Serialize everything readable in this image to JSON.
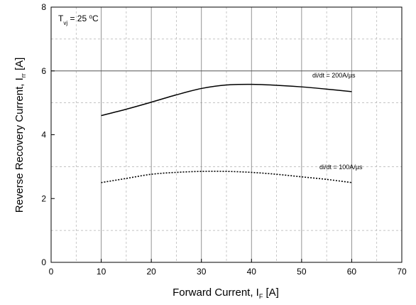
{
  "chart_data": {
    "type": "line",
    "xlabel": {
      "main": "Forward Current, I",
      "sub": "F",
      "unit": " [A]"
    },
    "ylabel": {
      "main": "Reverse Recovery Current, I",
      "sub": "rr",
      "unit": " [A]"
    },
    "xlim": [
      0,
      70
    ],
    "ylim": [
      0,
      8
    ],
    "xticks": [
      "0",
      "10",
      "20",
      "30",
      "40",
      "50",
      "60",
      "70"
    ],
    "yticks": [
      "0",
      "2",
      "4",
      "6",
      "8"
    ],
    "grid": {
      "major_x": true,
      "major_y_at": [
        6
      ],
      "minor_dashed": true
    },
    "condition": {
      "symbol": "T",
      "sub": "vj",
      "value": " = 25 ",
      "sup": "o",
      "unit": "C"
    },
    "series": [
      {
        "label": "di/dt = 200A/µs",
        "style": "solid",
        "x": [
          10,
          15,
          20,
          25,
          30,
          35,
          40,
          45,
          50,
          55,
          60
        ],
        "y": [
          4.6,
          4.8,
          5.02,
          5.25,
          5.45,
          5.56,
          5.58,
          5.55,
          5.5,
          5.43,
          5.35
        ]
      },
      {
        "label": "di/dt = 100A/µs",
        "style": "dotted",
        "x": [
          10,
          15,
          20,
          25,
          30,
          35,
          40,
          45,
          50,
          55,
          60
        ],
        "y": [
          2.5,
          2.63,
          2.76,
          2.82,
          2.85,
          2.85,
          2.82,
          2.76,
          2.68,
          2.6,
          2.5
        ]
      }
    ]
  }
}
